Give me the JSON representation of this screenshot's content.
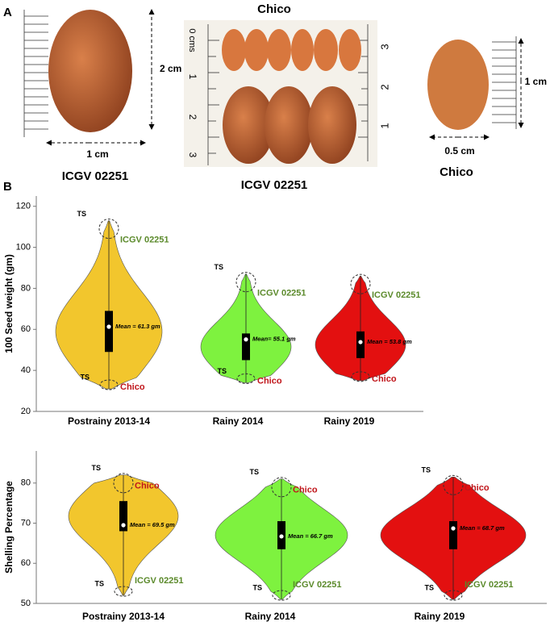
{
  "panel_a": {
    "label": "A",
    "left_photo": {
      "height_label": "2 cm",
      "width_label": "1 cm",
      "caption": "ICGV 02251"
    },
    "middle_photo": {
      "title": "Chico",
      "caption": "ICGV 02251",
      "left_ruler": [
        "0 cms",
        "1",
        "2",
        "3"
      ],
      "right_ruler": [
        "3",
        "2",
        "1"
      ]
    },
    "right_photo": {
      "height_label": "1 cm",
      "width_label": "0.5 cm",
      "caption": "Chico"
    }
  },
  "panel_b_label": "B",
  "chart_data": [
    {
      "type": "violin",
      "y_label": "100 Seed weight (gm)",
      "categories": [
        "Postrainy 2013-14",
        "Rainy 2014",
        "Rainy 2019"
      ],
      "colors": [
        "#f2c62d",
        "#7ef23f",
        "#e31010"
      ],
      "mins": [
        31,
        34,
        35
      ],
      "maxs": [
        113,
        87,
        86
      ],
      "q1": [
        49,
        45,
        46
      ],
      "q3": [
        69,
        58,
        59
      ],
      "means": [
        61.3,
        55.1,
        53.8
      ],
      "mean_labels": [
        "Mean = 61.3 gm",
        "Mean= 55.1 gm",
        "Mean = 53.8 gm"
      ],
      "top_labels": [
        [
          "TS",
          "ICGV 02251"
        ],
        [
          "TS",
          "ICGV 02251"
        ],
        [
          "ICGV 02251"
        ]
      ],
      "bottom_labels": [
        [
          "TS",
          "Chico"
        ],
        [
          "TS",
          "Chico"
        ],
        [
          "Chico"
        ]
      ],
      "ylim": [
        20,
        125
      ],
      "yticks": [
        20,
        40,
        60,
        80,
        100,
        120
      ]
    },
    {
      "type": "violin",
      "y_label": "Shelling  Percentage",
      "categories": [
        "Postrainy 2013-14",
        "Rainy 2014",
        "Rainy 2019"
      ],
      "colors": [
        "#f2c62d",
        "#7ef23f",
        "#e31010"
      ],
      "mins": [
        52,
        51,
        51
      ],
      "maxs": [
        82,
        81,
        81.5
      ],
      "q1": [
        68,
        63.5,
        63.5
      ],
      "q3": [
        75.5,
        70.5,
        70.5
      ],
      "means": [
        69.5,
        66.7,
        68.7
      ],
      "mean_labels": [
        "Mean = 69.5 gm",
        "Mean = 66.7 gm",
        "Mean = 68.7 gm"
      ],
      "top_labels": [
        [
          "TS",
          "Chico"
        ],
        [
          "TS",
          "Chico"
        ],
        [
          "TS",
          "Chico"
        ]
      ],
      "bottom_labels": [
        [
          "TS",
          "ICGV 02251"
        ],
        [
          "TS",
          "ICGV 02251"
        ],
        [
          "TS",
          "ICGV 02251"
        ]
      ],
      "ylim": [
        50,
        88
      ],
      "yticks": [
        50,
        60,
        70,
        80
      ]
    }
  ]
}
